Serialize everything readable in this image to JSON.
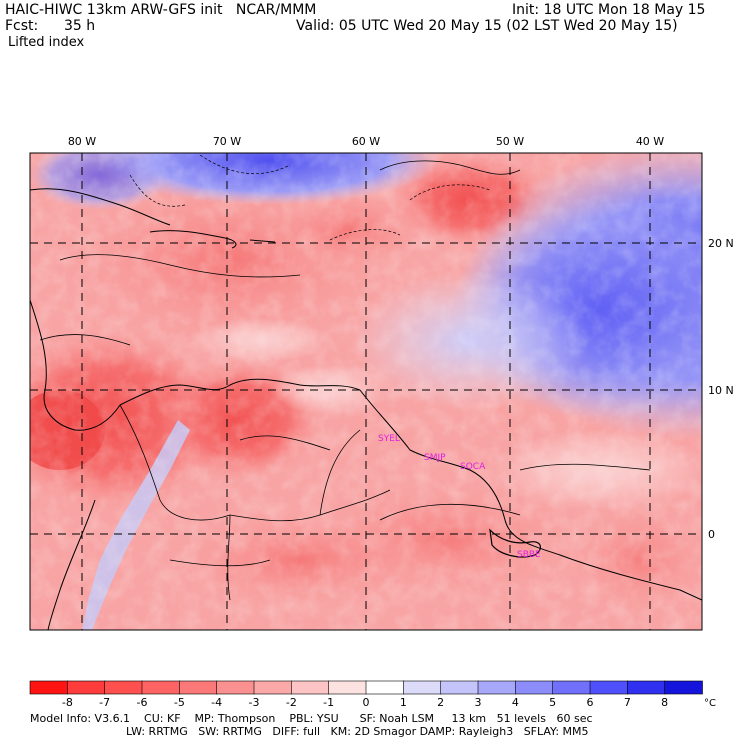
{
  "header": {
    "model_line": "HAIC-HIWC 13km ARW-GFS init   NCAR/MMM",
    "init_line": "Init: 18 UTC Mon 18 May 15",
    "fcst_label": "Fcst:",
    "fcst_value": "35 h",
    "valid_line": "Valid: 05 UTC Wed 20 May 15 (02 LST Wed 20 May 15)",
    "field_name": "Lifted index"
  },
  "map": {
    "lon_labels": [
      "80 W",
      "70 W",
      "60 W",
      "50 W",
      "40 W"
    ],
    "lat_labels": [
      "20 N",
      "10 N",
      "0"
    ],
    "stations": [
      "SYEL",
      "SMJP",
      "SOCA",
      "SBBE"
    ],
    "colors": {
      "land_border": "#000000",
      "station": "#e020e0"
    }
  },
  "colorbar": {
    "ticks": [
      "-8",
      "-7",
      "-6",
      "-5",
      "-4",
      "-3",
      "-2",
      "-1",
      "0",
      "1",
      "2",
      "3",
      "4",
      "5",
      "6",
      "7",
      "8"
    ],
    "unit": "°C",
    "colors": [
      "#ff1414",
      "#ff3c3c",
      "#ff5050",
      "#ff6464",
      "#fa7878",
      "#fa9090",
      "#faa8a8",
      "#fcc4c4",
      "#fde2e2",
      "#ffffff",
      "#dcdcfa",
      "#c4c4fa",
      "#a8a8fa",
      "#8c8cfa",
      "#7070fa",
      "#5050fa",
      "#3030f0",
      "#1414dc"
    ]
  },
  "footer": {
    "line1": "Model Info: V3.6.1    CU: KF    MP: Thompson    PBL: YSU      SF: Noah LSM     13 km   51 levels   60 sec",
    "line2": "LW: RRTMG   SW: RRTMG   DIFF: full   KM: 2D Smagor DAMP: Rayleigh3   SFLAY: MM5"
  }
}
